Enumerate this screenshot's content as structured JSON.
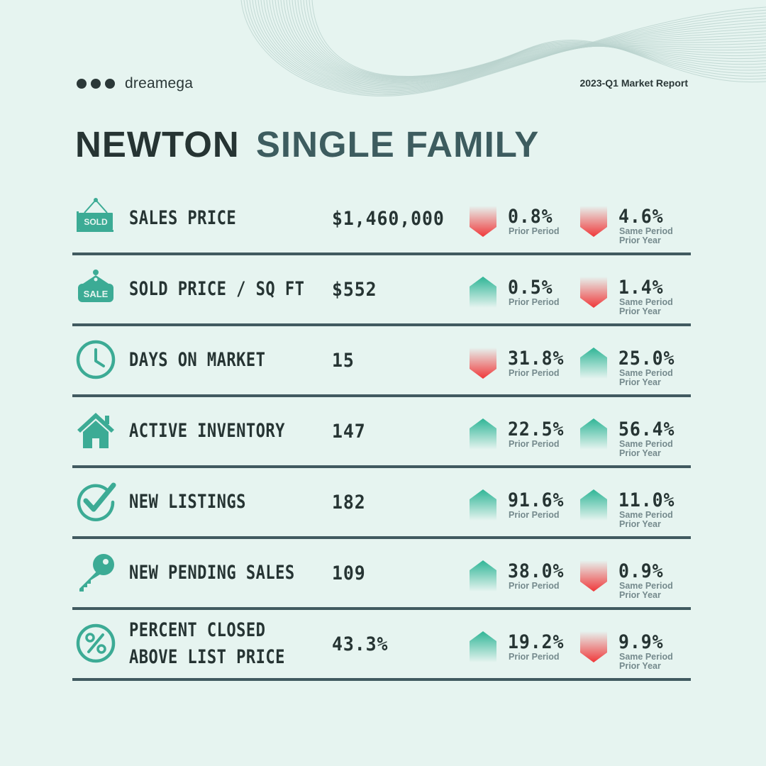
{
  "brand": {
    "name": "dreamega"
  },
  "report_title": "2023-Q1 Market Report",
  "title": {
    "part1": "NEWTON",
    "part2": "SINGLE FAMILY"
  },
  "colors": {
    "up": "#2fb596",
    "down": "#f0383a",
    "icon": "#3cab95",
    "text": "#263433",
    "divider": "#415a60"
  },
  "rows": [
    {
      "icon": "sold-sign-icon",
      "metric_lines": [
        "SALES PRICE"
      ],
      "value": "$1,460,000",
      "prior": {
        "direction": "down",
        "pct": "0.8%",
        "label": "Prior Period"
      },
      "year": {
        "direction": "down",
        "pct": "4.6%",
        "label1": "Same Period",
        "label2": "Prior Year"
      }
    },
    {
      "icon": "sale-tag-icon",
      "metric_lines": [
        "SOLD PRICE / SQ FT"
      ],
      "value": "$552",
      "prior": {
        "direction": "up",
        "pct": "0.5%",
        "label": "Prior Period"
      },
      "year": {
        "direction": "down",
        "pct": "1.4%",
        "label1": "Same Period",
        "label2": "Prior Year"
      }
    },
    {
      "icon": "clock-icon",
      "metric_lines": [
        "DAYS ON MARKET"
      ],
      "value": "15",
      "prior": {
        "direction": "down",
        "pct": "31.8%",
        "label": "Prior Period"
      },
      "year": {
        "direction": "up",
        "pct": "25.0%",
        "label1": "Same Period",
        "label2": "Prior Year"
      }
    },
    {
      "icon": "house-icon",
      "metric_lines": [
        "ACTIVE INVENTORY"
      ],
      "value": "147",
      "prior": {
        "direction": "up",
        "pct": "22.5%",
        "label": "Prior Period"
      },
      "year": {
        "direction": "up",
        "pct": "56.4%",
        "label1": "Same Period",
        "label2": "Prior Year"
      }
    },
    {
      "icon": "checkmark-icon",
      "metric_lines": [
        "NEW LISTINGS"
      ],
      "value": "182",
      "prior": {
        "direction": "up",
        "pct": "91.6%",
        "label": "Prior Period"
      },
      "year": {
        "direction": "up",
        "pct": "11.0%",
        "label1": "Same Period",
        "label2": "Prior Year"
      }
    },
    {
      "icon": "key-icon",
      "metric_lines": [
        "NEW PENDING SALES"
      ],
      "value": "109",
      "prior": {
        "direction": "up",
        "pct": "38.0%",
        "label": "Prior Period"
      },
      "year": {
        "direction": "down",
        "pct": "0.9%",
        "label1": "Same Period",
        "label2": "Prior Year"
      }
    },
    {
      "icon": "percent-icon",
      "metric_lines": [
        "PERCENT CLOSED",
        "ABOVE LIST PRICE"
      ],
      "value": "43.3%",
      "prior": {
        "direction": "up",
        "pct": "19.2%",
        "label": "Prior Period"
      },
      "year": {
        "direction": "down",
        "pct": "9.9%",
        "label1": "Same Period",
        "label2": "Prior Year"
      }
    }
  ]
}
